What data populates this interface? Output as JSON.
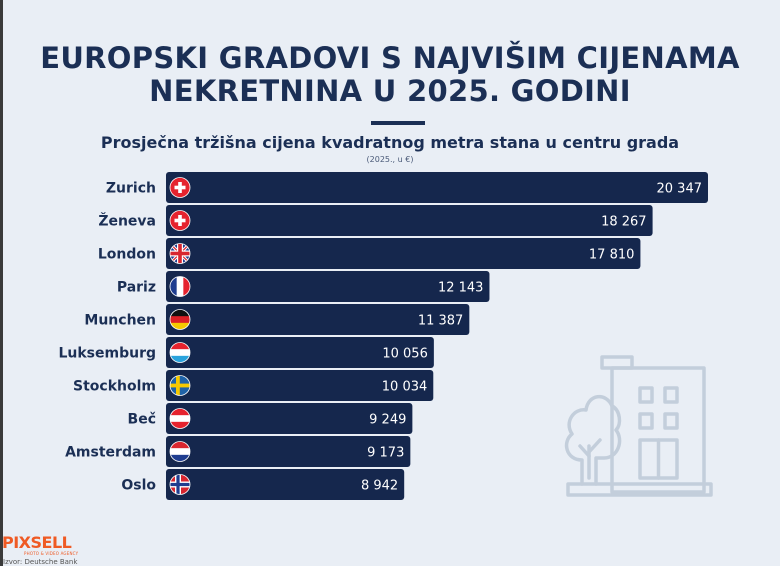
{
  "header": {
    "title_line1": "EUROPSKI GRADOVI S NAJVIŠIM CIJENAMA",
    "title_line2": "NEKRETNINA U 2025. GODINI",
    "subtitle": "Prosječna tržišna cijena kvadratnog metra stana u centru grada",
    "unit": "(2025., u €)"
  },
  "chart_data": {
    "type": "bar",
    "orientation": "horizontal",
    "title": "EUROPSKI GRADOVI S NAJVIŠIM CIJENAMA NEKRETNINA U 2025. GODINI",
    "subtitle": "Prosječna tržišna cijena kvadratnog metra stana u centru grada",
    "unit": "(2025., u €)",
    "xlim": [
      0,
      20347
    ],
    "categories": [
      "Zurich",
      "Ženeva",
      "London",
      "Pariz",
      "Munchen",
      "Luksemburg",
      "Stockholm",
      "Beč",
      "Amsterdam",
      "Oslo"
    ],
    "values": [
      20347,
      18267,
      17810,
      12143,
      11387,
      10056,
      10034,
      9249,
      9173,
      8942
    ],
    "value_labels": [
      "20 347",
      "18 267",
      "17 810",
      "12 143",
      "11 387",
      "10 056",
      "10 034",
      "9 249",
      "9 173",
      "8 942"
    ],
    "flags": [
      "ch",
      "ch",
      "gb",
      "fr",
      "de",
      "lu",
      "se",
      "at",
      "nl",
      "no"
    ]
  },
  "colors": {
    "bar": "#15274d",
    "title": "#1b2f55",
    "background": "#e9eef5",
    "illustration": "#c3cedb",
    "logo": "#ef5a24"
  },
  "footer": {
    "logo": "PIXSELL",
    "logo_tagline": "PHOTO & VIDEO AGENCY",
    "source": "Izvor: Deutsche Bank"
  }
}
